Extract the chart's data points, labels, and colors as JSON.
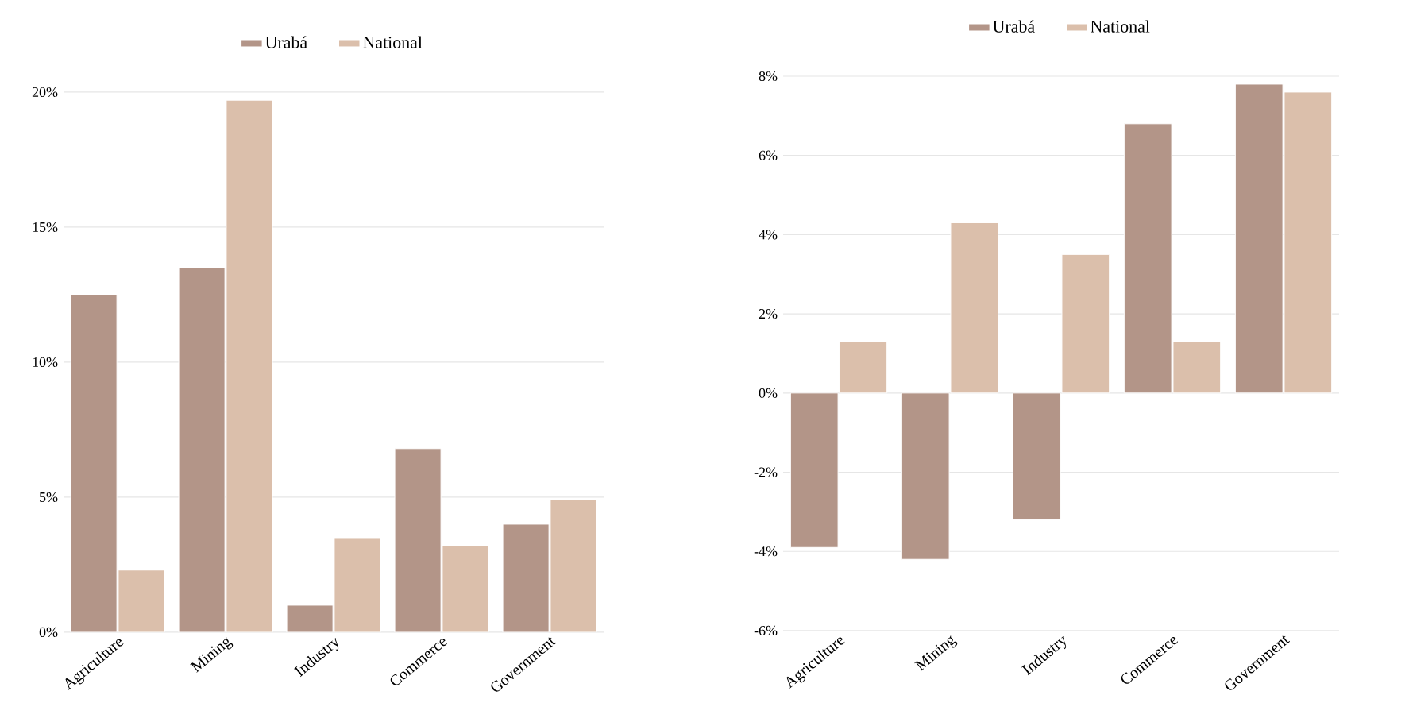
{
  "chart_data": [
    {
      "type": "bar",
      "categories": [
        "Agriculture",
        "Mining",
        "Industry",
        "Commerce",
        "Government"
      ],
      "series": [
        {
          "name": "Urabá",
          "color": "#b39588",
          "values": [
            12.5,
            13.5,
            1.0,
            6.8,
            4.0
          ]
        },
        {
          "name": "National",
          "color": "#dbbfab",
          "values": [
            2.3,
            19.7,
            3.5,
            3.2,
            4.9
          ]
        }
      ],
      "ylim": [
        0,
        20
      ],
      "yticks": [
        {
          "value": 0,
          "label": "0%"
        },
        {
          "value": 5,
          "label": "5%"
        },
        {
          "value": 10,
          "label": "10%"
        },
        {
          "value": 15,
          "label": "15%"
        },
        {
          "value": 20,
          "label": "20%"
        }
      ],
      "grid": "y",
      "legend": "top"
    },
    {
      "type": "bar",
      "categories": [
        "Agriculture",
        "Mining",
        "Industry",
        "Commerce",
        "Government"
      ],
      "series": [
        {
          "name": "Urabá",
          "color": "#b39588",
          "values": [
            -3.9,
            -4.2,
            -3.2,
            6.8,
            7.8
          ]
        },
        {
          "name": "National",
          "color": "#dbbfab",
          "values": [
            1.3,
            4.3,
            3.5,
            1.3,
            7.6
          ]
        }
      ],
      "ylim": [
        -6,
        8
      ],
      "yticks": [
        {
          "value": -6,
          "label": "-6%"
        },
        {
          "value": -4,
          "label": "-4%"
        },
        {
          "value": -2,
          "label": "-2%"
        },
        {
          "value": 0,
          "label": "0%"
        },
        {
          "value": 2,
          "label": "2%"
        },
        {
          "value": 4,
          "label": "4%"
        },
        {
          "value": 6,
          "label": "6%"
        },
        {
          "value": 8,
          "label": "8%"
        }
      ],
      "grid": "y",
      "legend": "top"
    }
  ]
}
